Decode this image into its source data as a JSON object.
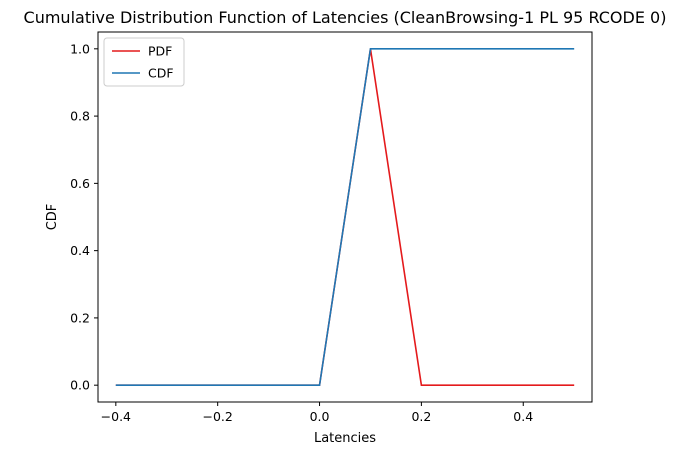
{
  "chart_data": {
    "type": "line",
    "title": "Cumulative Distribution Function of Latencies (CleanBrowsing-1 PL 95 RCODE 0)",
    "xlabel": "Latencies",
    "ylabel": "CDF",
    "xlim": [
      -0.435,
      0.535
    ],
    "ylim": [
      -0.05,
      1.05
    ],
    "xticks": [
      -0.4,
      -0.2,
      0.0,
      0.2,
      0.4
    ],
    "xtick_labels": [
      "−0.4",
      "−0.2",
      "0.0",
      "0.2",
      "0.4"
    ],
    "yticks": [
      0.0,
      0.2,
      0.4,
      0.6,
      0.8,
      1.0
    ],
    "ytick_labels": [
      "0.0",
      "0.2",
      "0.4",
      "0.6",
      "0.8",
      "1.0"
    ],
    "grid": false,
    "legend_position": "top-left",
    "series": [
      {
        "name": "PDF",
        "color": "#e41a1c",
        "x": [
          -0.4,
          -0.3,
          -0.2,
          -0.1,
          0.0,
          0.1,
          0.2,
          0.3,
          0.4,
          0.5
        ],
        "y": [
          0,
          0,
          0,
          0,
          0,
          1,
          0,
          0,
          0,
          0
        ]
      },
      {
        "name": "CDF",
        "color": "#1f77b4",
        "x": [
          -0.4,
          -0.3,
          -0.2,
          -0.1,
          0.0,
          0.1,
          0.2,
          0.3,
          0.4,
          0.5
        ],
        "y": [
          0,
          0,
          0,
          0,
          0,
          1,
          1,
          1,
          1,
          1
        ]
      }
    ]
  }
}
